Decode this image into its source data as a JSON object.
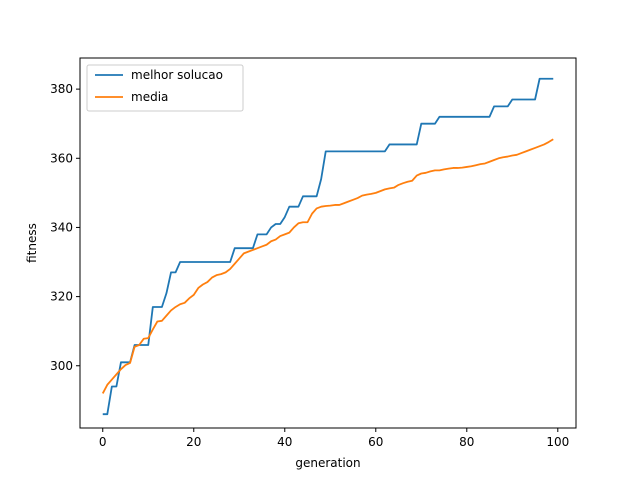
{
  "chart_data": {
    "type": "line",
    "xlabel": "generation",
    "ylabel": "fitness",
    "xlim": [
      -5,
      104
    ],
    "ylim": [
      282,
      389
    ],
    "xticks": [
      0,
      20,
      40,
      60,
      80,
      100
    ],
    "yticks": [
      300,
      320,
      340,
      360,
      380
    ],
    "grid": false,
    "legend_position": "top-left",
    "series": [
      {
        "name": "melhor solucao",
        "color": "#1f77b4",
        "x": [
          0,
          1,
          2,
          3,
          4,
          5,
          6,
          7,
          8,
          9,
          10,
          11,
          12,
          13,
          14,
          15,
          16,
          17,
          18,
          19,
          20,
          21,
          22,
          23,
          24,
          25,
          26,
          27,
          28,
          29,
          30,
          31,
          32,
          33,
          34,
          35,
          36,
          37,
          38,
          39,
          40,
          41,
          42,
          43,
          44,
          45,
          46,
          47,
          48,
          49,
          50,
          51,
          52,
          53,
          54,
          55,
          56,
          57,
          58,
          59,
          60,
          61,
          62,
          63,
          64,
          65,
          66,
          67,
          68,
          69,
          70,
          71,
          72,
          73,
          74,
          75,
          76,
          77,
          78,
          79,
          80,
          81,
          82,
          83,
          84,
          85,
          86,
          87,
          88,
          89,
          90,
          91,
          92,
          93,
          94,
          95,
          96,
          97,
          98,
          99
        ],
        "values": [
          286,
          286,
          294,
          294,
          301,
          301,
          301,
          306,
          306,
          306,
          306,
          317,
          317,
          317,
          321,
          327,
          327,
          330,
          330,
          330,
          330,
          330,
          330,
          330,
          330,
          330,
          330,
          330,
          330,
          334,
          334,
          334,
          334,
          334,
          338,
          338,
          338,
          340,
          341,
          341,
          343,
          346,
          346,
          346,
          349,
          349,
          349,
          349,
          354,
          362,
          362,
          362,
          362,
          362,
          362,
          362,
          362,
          362,
          362,
          362,
          362,
          362,
          362,
          364,
          364,
          364,
          364,
          364,
          364,
          364,
          370,
          370,
          370,
          370,
          372,
          372,
          372,
          372,
          372,
          372,
          372,
          372,
          372,
          372,
          372,
          372,
          375,
          375,
          375,
          375,
          377,
          377,
          377,
          377,
          377,
          377,
          383,
          383,
          383,
          383
        ]
      },
      {
        "name": "media",
        "color": "#ff7f0e",
        "x": [
          0,
          1,
          2,
          3,
          4,
          5,
          6,
          7,
          8,
          9,
          10,
          11,
          12,
          13,
          14,
          15,
          16,
          17,
          18,
          19,
          20,
          21,
          22,
          23,
          24,
          25,
          26,
          27,
          28,
          29,
          30,
          31,
          32,
          33,
          34,
          35,
          36,
          37,
          38,
          39,
          40,
          41,
          42,
          43,
          44,
          45,
          46,
          47,
          48,
          49,
          50,
          51,
          52,
          53,
          54,
          55,
          56,
          57,
          58,
          59,
          60,
          61,
          62,
          63,
          64,
          65,
          66,
          67,
          68,
          69,
          70,
          71,
          72,
          73,
          74,
          75,
          76,
          77,
          78,
          79,
          80,
          81,
          82,
          83,
          84,
          85,
          86,
          87,
          88,
          89,
          90,
          91,
          92,
          93,
          94,
          95,
          96,
          97,
          98,
          99
        ],
        "values": [
          292,
          294.5,
          296,
          297.5,
          299,
          300.2,
          300.8,
          305.5,
          306,
          307.8,
          308,
          310.5,
          312.8,
          313,
          314.5,
          316,
          317,
          317.8,
          318.2,
          319.5,
          320.5,
          322.5,
          323.5,
          324.2,
          325.5,
          326.2,
          326.5,
          327,
          328,
          329.5,
          331,
          332.5,
          333,
          333.5,
          334,
          334.5,
          335,
          336,
          336.5,
          337.5,
          338,
          338.5,
          340,
          341.2,
          341.5,
          341.5,
          344,
          345.5,
          346,
          346.2,
          346.3,
          346.5,
          346.5,
          347,
          347.5,
          348,
          348.5,
          349.2,
          349.5,
          349.7,
          350,
          350.5,
          351,
          351.3,
          351.5,
          352.3,
          352.8,
          353.2,
          353.5,
          355,
          355.6,
          355.8,
          356.2,
          356.5,
          356.5,
          356.8,
          357,
          357.2,
          357.2,
          357.3,
          357.5,
          357.7,
          358,
          358.3,
          358.5,
          359,
          359.5,
          360,
          360.3,
          360.5,
          360.8,
          361,
          361.5,
          362,
          362.5,
          363,
          363.5,
          364,
          364.7,
          365.5
        ]
      }
    ]
  }
}
